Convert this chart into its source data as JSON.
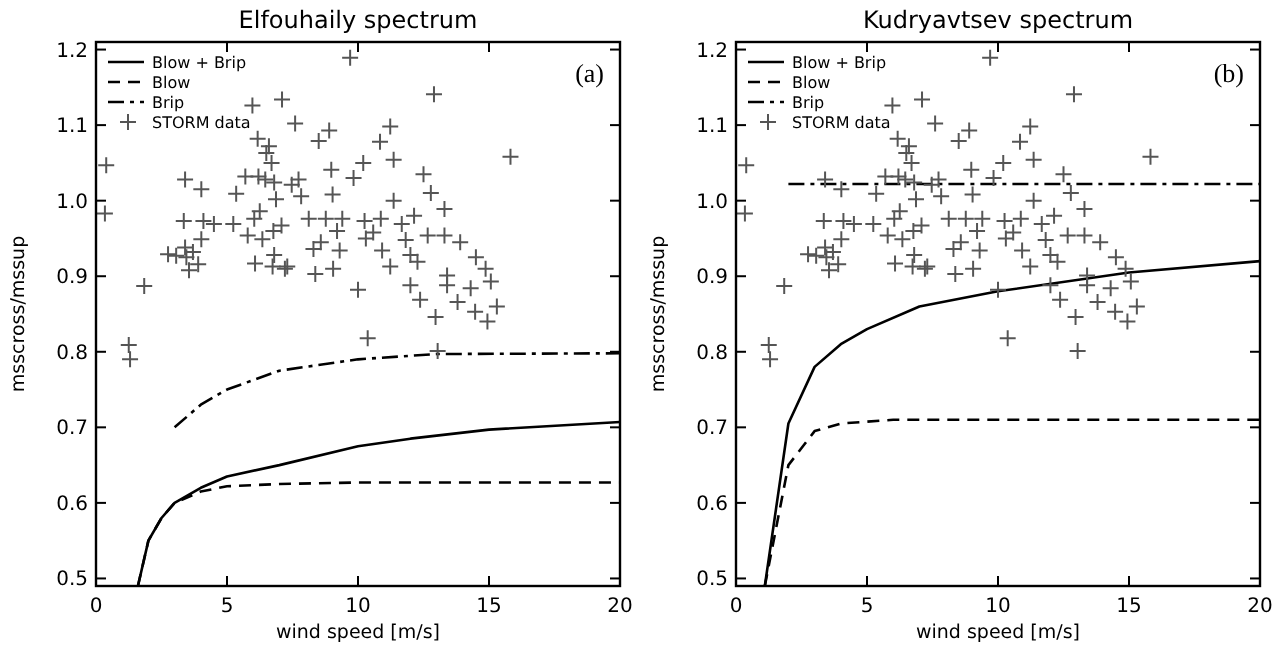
{
  "chart_data": [
    {
      "type": "line",
      "title": "Elfouhaily spectrum",
      "xlabel": "wind speed [m/s]",
      "ylabel": "msscross/mssup",
      "annotations": [
        "(a)"
      ],
      "legend": "top left",
      "grid": false,
      "xlim": [
        0,
        20
      ],
      "ylim": [
        0.49,
        1.21
      ],
      "xticks": [
        0,
        5,
        10,
        15,
        20
      ],
      "yticks": [
        0.5,
        0.6,
        0.7,
        0.8,
        0.9,
        {
          "value": 1,
          "label": "1.0"
        },
        1.1,
        1.2
      ],
      "series": [
        {
          "name": "Blow + Brip",
          "type": "line",
          "line_style": "solid",
          "color": "#000000",
          "x": [
            1.6,
            2,
            2.5,
            3,
            4,
            5,
            7,
            10,
            12,
            15,
            20
          ],
          "values": [
            0.49,
            0.55,
            0.58,
            0.6,
            0.62,
            0.635,
            0.65,
            0.675,
            0.685,
            0.697,
            0.707
          ]
        },
        {
          "name": "Blow",
          "type": "line",
          "line_style": "dashed",
          "color": "#000000",
          "x": [
            1.6,
            2,
            2.5,
            3,
            4,
            5,
            7,
            10,
            20
          ],
          "values": [
            0.49,
            0.55,
            0.58,
            0.6,
            0.615,
            0.622,
            0.625,
            0.627,
            0.627
          ]
        },
        {
          "name": "Brip",
          "type": "line",
          "line_style": "dashdot",
          "color": "#000000",
          "x": [
            3,
            4,
            5,
            7,
            10,
            13,
            20
          ],
          "values": [
            0.7,
            0.73,
            0.75,
            0.775,
            0.79,
            0.797,
            0.798
          ]
        },
        {
          "name": "STORM data",
          "type": "scatter",
          "marker": "cross",
          "color": "#555555",
          "x": [
            0.39,
            0.34,
            1.25,
            1.3,
            1.84,
            2.75,
            3.06,
            3.4,
            3.35,
            3.4,
            3.45,
            3.55,
            3.7,
            3.9,
            4.02,
            4.1,
            4.02,
            4.5,
            5.24,
            5.35,
            5.7,
            5.97,
            5.79,
            6.04,
            6.17,
            6.2,
            6.25,
            6.07,
            6.35,
            6.46,
            6.5,
            6.6,
            6.7,
            6.8,
            6.87,
            6.77,
            6.8,
            6.74,
            7.1,
            7.08,
            7.21,
            7.3,
            7.47,
            7.6,
            7.73,
            7.83,
            8.12,
            8.3,
            8.37,
            8.5,
            8.58,
            8.77,
            8.9,
            8.98,
            9.03,
            9.05,
            9.2,
            9.3,
            9.4,
            9.7,
            9.83,
            10,
            10.2,
            10.25,
            10.3,
            10.37,
            10.58,
            10.84,
            10.87,
            10.92,
            11.23,
            11.36,
            11.36,
            11.23,
            11.67,
            11.82,
            12,
            12,
            12.14,
            12.27,
            12.37,
            12.5,
            12.66,
            12.78,
            12.9,
            12.96,
            13.04,
            13.3,
            13.3,
            13.4,
            13.4,
            13.8,
            13.9,
            14.3,
            14.47,
            14.5,
            14.87,
            14.94,
            15.07,
            15.3,
            15.82
          ],
          "values": [
            1.047,
            0.983,
            0.809,
            0.79,
            0.887,
            0.929,
            0.927,
            1.028,
            0.973,
            0.938,
            0.925,
            0.908,
            0.932,
            0.916,
            1.015,
            0.973,
            0.949,
            0.969,
            0.969,
            1.009,
            1.032,
            1.126,
            0.954,
            0.976,
            1.082,
            1.032,
            0.986,
            0.917,
            0.949,
            1.028,
            1.063,
            1.072,
            1.05,
            1.024,
            1.002,
            0.96,
            0.928,
            0.913,
            1.134,
            0.967,
            0.91,
            0.913,
            1.021,
            1.102,
            1.028,
            1.006,
            0.976,
            0.936,
            0.903,
            1.079,
            0.945,
            0.976,
            1.093,
            1.041,
            1.008,
            0.91,
            0.96,
            0.934,
            0.976,
            1.189,
            1.03,
            0.882,
            1.05,
            0.973,
            0.95,
            0.818,
            0.958,
            1.078,
            0.976,
            0.934,
            1.098,
            1.054,
            1,
            0.913,
            0.969,
            0.948,
            0.928,
            0.888,
            0.98,
            0.919,
            0.869,
            1.035,
            0.954,
            1.01,
            1.141,
            0.846,
            0.801,
            0.989,
            0.954,
            0.888,
            0.901,
            0.866,
            0.945,
            0.884,
            0.853,
            0.925,
            0.91,
            0.84,
            0.893,
            0.86,
            1.058
          ]
        }
      ]
    },
    {
      "type": "line",
      "title": "Kudryavtsev spectrum",
      "xlabel": "wind speed [m/s]",
      "ylabel": "msscross/mssup",
      "annotations": [
        "(b)"
      ],
      "legend": "top left",
      "grid": false,
      "xlim": [
        0,
        20
      ],
      "ylim": [
        0.49,
        1.21
      ],
      "xticks": [
        0,
        5,
        10,
        15,
        20
      ],
      "yticks": [
        0.5,
        0.6,
        0.7,
        0.8,
        0.9,
        {
          "value": 1,
          "label": "1.0"
        },
        1.1,
        1.2
      ],
      "series": [
        {
          "name": "Blow + Brip",
          "type": "line",
          "line_style": "solid",
          "color": "#000000",
          "x": [
            1.1,
            2,
            3,
            4,
            5,
            7,
            10,
            15,
            20
          ],
          "values": [
            0.49,
            0.705,
            0.78,
            0.81,
            0.83,
            0.86,
            0.88,
            0.905,
            0.92
          ]
        },
        {
          "name": "Blow",
          "type": "line",
          "line_style": "dashed",
          "color": "#000000",
          "x": [
            1.1,
            2,
            3,
            4,
            6,
            20
          ],
          "values": [
            0.49,
            0.65,
            0.695,
            0.705,
            0.71,
            0.71
          ]
        },
        {
          "name": "Brip",
          "type": "line",
          "line_style": "dashdot",
          "color": "#000000",
          "x": [
            2,
            20
          ],
          "values": [
            1.022,
            1.022
          ]
        },
        {
          "name": "STORM data",
          "type": "scatter",
          "marker": "cross",
          "color": "#555555",
          "x": [
            0.39,
            0.34,
            1.25,
            1.3,
            1.84,
            2.75,
            3.06,
            3.4,
            3.35,
            3.4,
            3.45,
            3.55,
            3.7,
            3.9,
            4.02,
            4.1,
            4.02,
            4.5,
            5.24,
            5.35,
            5.7,
            5.97,
            5.79,
            6.04,
            6.17,
            6.2,
            6.25,
            6.07,
            6.35,
            6.46,
            6.5,
            6.6,
            6.7,
            6.8,
            6.87,
            6.77,
            6.8,
            6.74,
            7.1,
            7.08,
            7.21,
            7.3,
            7.47,
            7.6,
            7.73,
            7.83,
            8.12,
            8.3,
            8.37,
            8.5,
            8.58,
            8.77,
            8.9,
            8.98,
            9.03,
            9.05,
            9.2,
            9.3,
            9.4,
            9.7,
            9.83,
            10,
            10.2,
            10.25,
            10.3,
            10.37,
            10.58,
            10.84,
            10.87,
            10.92,
            11.23,
            11.36,
            11.36,
            11.23,
            11.67,
            11.82,
            12,
            12,
            12.14,
            12.27,
            12.37,
            12.5,
            12.66,
            12.78,
            12.9,
            12.96,
            13.04,
            13.3,
            13.3,
            13.4,
            13.4,
            13.8,
            13.9,
            14.3,
            14.47,
            14.5,
            14.87,
            14.94,
            15.07,
            15.3,
            15.82
          ],
          "values": [
            1.047,
            0.983,
            0.809,
            0.79,
            0.887,
            0.929,
            0.927,
            1.028,
            0.973,
            0.938,
            0.925,
            0.908,
            0.932,
            0.916,
            1.015,
            0.973,
            0.949,
            0.969,
            0.969,
            1.009,
            1.032,
            1.126,
            0.954,
            0.976,
            1.082,
            1.032,
            0.986,
            0.917,
            0.949,
            1.028,
            1.063,
            1.072,
            1.05,
            1.024,
            1.002,
            0.96,
            0.928,
            0.913,
            1.134,
            0.967,
            0.91,
            0.913,
            1.021,
            1.102,
            1.028,
            1.006,
            0.976,
            0.936,
            0.903,
            1.079,
            0.945,
            0.976,
            1.093,
            1.041,
            1.008,
            0.91,
            0.96,
            0.934,
            0.976,
            1.189,
            1.03,
            0.882,
            1.05,
            0.973,
            0.95,
            0.818,
            0.958,
            1.078,
            0.976,
            0.934,
            1.098,
            1.054,
            1,
            0.913,
            0.969,
            0.948,
            0.928,
            0.888,
            0.98,
            0.919,
            0.869,
            1.035,
            0.954,
            1.01,
            1.141,
            0.846,
            0.801,
            0.989,
            0.954,
            0.888,
            0.901,
            0.866,
            0.945,
            0.884,
            0.853,
            0.925,
            0.91,
            0.84,
            0.893,
            0.86,
            1.058
          ]
        }
      ]
    }
  ]
}
